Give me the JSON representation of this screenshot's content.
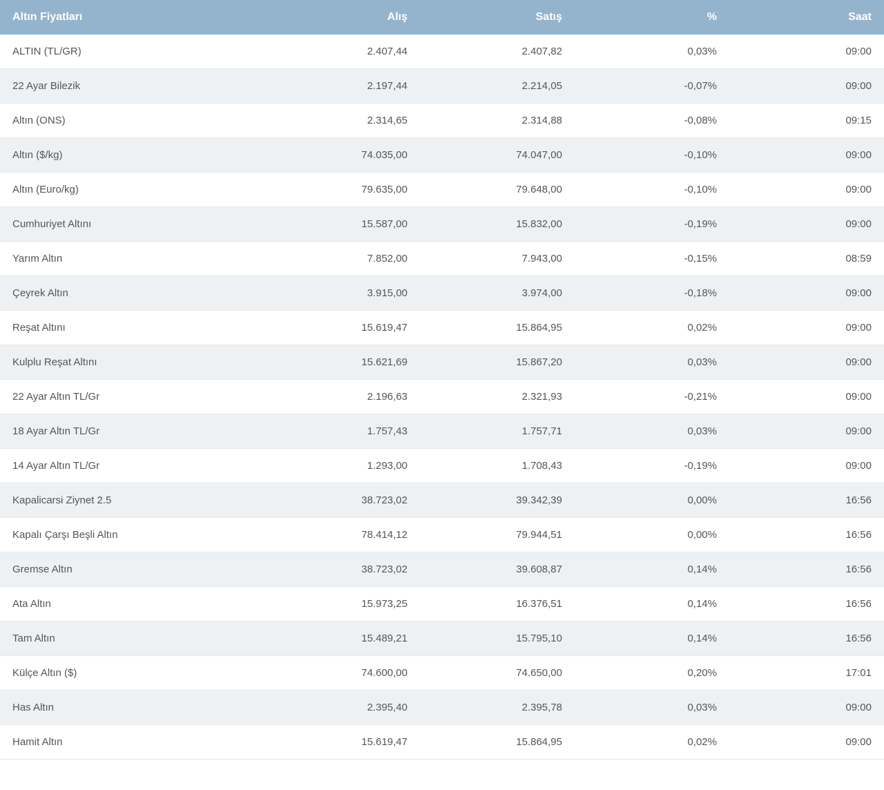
{
  "table": {
    "header_bg": "#94b3cc",
    "header_text_color": "#ffffff",
    "row_even_bg": "#ffffff",
    "row_odd_bg": "#eef1f4",
    "cell_text_color": "#555555",
    "columns": [
      {
        "key": "name",
        "label": "Altın Fiyatları",
        "align": "left"
      },
      {
        "key": "buy",
        "label": "Alış",
        "align": "right"
      },
      {
        "key": "sell",
        "label": "Satış",
        "align": "right"
      },
      {
        "key": "pct",
        "label": "%",
        "align": "right"
      },
      {
        "key": "time",
        "label": "Saat",
        "align": "right"
      }
    ],
    "rows": [
      {
        "name": "ALTIN (TL/GR)",
        "buy": "2.407,44",
        "sell": "2.407,82",
        "pct": "0,03%",
        "time": "09:00"
      },
      {
        "name": "22 Ayar Bilezik",
        "buy": "2.197,44",
        "sell": "2.214,05",
        "pct": "-0,07%",
        "time": "09:00"
      },
      {
        "name": "Altın (ONS)",
        "buy": "2.314,65",
        "sell": "2.314,88",
        "pct": "-0,08%",
        "time": "09:15"
      },
      {
        "name": "Altın ($/kg)",
        "buy": "74.035,00",
        "sell": "74.047,00",
        "pct": "-0,10%",
        "time": "09:00"
      },
      {
        "name": "Altın (Euro/kg)",
        "buy": "79.635,00",
        "sell": "79.648,00",
        "pct": "-0,10%",
        "time": "09:00"
      },
      {
        "name": "Cumhuriyet Altını",
        "buy": "15.587,00",
        "sell": "15.832,00",
        "pct": "-0,19%",
        "time": "09:00"
      },
      {
        "name": "Yarım Altın",
        "buy": "7.852,00",
        "sell": "7.943,00",
        "pct": "-0,15%",
        "time": "08:59"
      },
      {
        "name": "Çeyrek Altın",
        "buy": "3.915,00",
        "sell": "3.974,00",
        "pct": "-0,18%",
        "time": "09:00"
      },
      {
        "name": "Reşat Altını",
        "buy": "15.619,47",
        "sell": "15.864,95",
        "pct": "0,02%",
        "time": "09:00"
      },
      {
        "name": "Kulplu Reşat Altını",
        "buy": "15.621,69",
        "sell": "15.867,20",
        "pct": "0,03%",
        "time": "09:00"
      },
      {
        "name": "22 Ayar Altın TL/Gr",
        "buy": "2.196,63",
        "sell": "2.321,93",
        "pct": "-0,21%",
        "time": "09:00"
      },
      {
        "name": "18 Ayar Altın TL/Gr",
        "buy": "1.757,43",
        "sell": "1.757,71",
        "pct": "0,03%",
        "time": "09:00"
      },
      {
        "name": "14 Ayar Altın TL/Gr",
        "buy": "1.293,00",
        "sell": "1.708,43",
        "pct": "-0,19%",
        "time": "09:00"
      },
      {
        "name": "Kapalicarsi Ziynet 2.5",
        "buy": "38.723,02",
        "sell": "39.342,39",
        "pct": "0,00%",
        "time": "16:56"
      },
      {
        "name": "Kapalı Çarşı Beşli Altın",
        "buy": "78.414,12",
        "sell": "79.944,51",
        "pct": "0,00%",
        "time": "16:56"
      },
      {
        "name": "Gremse Altın",
        "buy": "38.723,02",
        "sell": "39.608,87",
        "pct": "0,14%",
        "time": "16:56"
      },
      {
        "name": "Ata Altın",
        "buy": "15.973,25",
        "sell": "16.376,51",
        "pct": "0,14%",
        "time": "16:56"
      },
      {
        "name": "Tam Altın",
        "buy": "15.489,21",
        "sell": "15.795,10",
        "pct": "0,14%",
        "time": "16:56"
      },
      {
        "name": "Külçe Altın ($)",
        "buy": "74.600,00",
        "sell": "74.650,00",
        "pct": "0,20%",
        "time": "17:01"
      },
      {
        "name": "Has Altın",
        "buy": "2.395,40",
        "sell": "2.395,78",
        "pct": "0,03%",
        "time": "09:00"
      },
      {
        "name": "Hamit Altın",
        "buy": "15.619,47",
        "sell": "15.864,95",
        "pct": "0,02%",
        "time": "09:00"
      }
    ]
  }
}
